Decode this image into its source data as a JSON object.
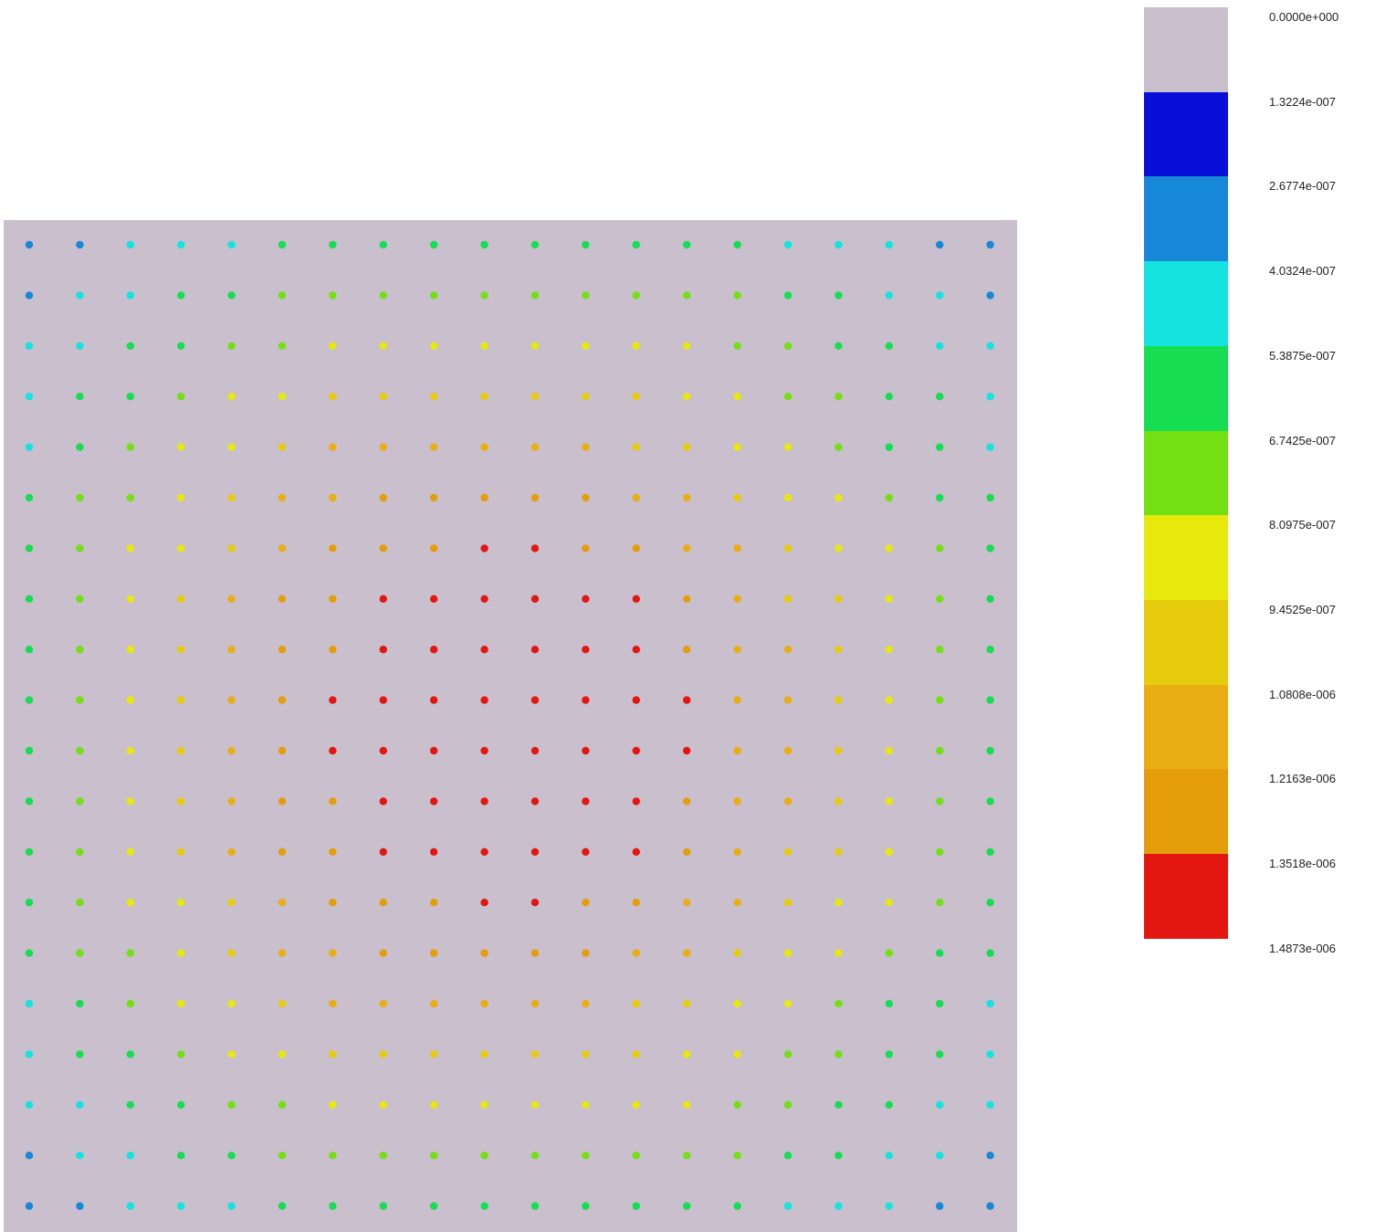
{
  "chart_data": {
    "type": "heatmap",
    "background_color": "#c9bfcd",
    "grid": {
      "rows": 20,
      "cols": 20
    },
    "legend": {
      "placement": "right",
      "labels": [
        "0.0000e+000",
        "1.3224e-007",
        "2.6774e-007",
        "4.0324e-007",
        "5.3875e-007",
        "6.7425e-007",
        "8.0975e-007",
        "9.4525e-007",
        "1.0808e-006",
        "1.2163e-006",
        "1.3518e-006",
        "1.4873e-006"
      ],
      "colors": [
        "#c9bfcd",
        "#0a0ed9",
        "#1787d8",
        "#14e3e0",
        "#17dd53",
        "#72e012",
        "#e7e80c",
        "#e6cc0c",
        "#e9ae11",
        "#e59d0a",
        "#e3170f"
      ]
    },
    "point_levels": [
      [
        2,
        2,
        3,
        3,
        3,
        4,
        4,
        4,
        4,
        4,
        4,
        4,
        4,
        4,
        4,
        3,
        3,
        3,
        2,
        2
      ],
      [
        2,
        3,
        3,
        4,
        4,
        5,
        5,
        5,
        5,
        5,
        5,
        5,
        5,
        5,
        5,
        4,
        4,
        3,
        3,
        2
      ],
      [
        3,
        3,
        4,
        4,
        5,
        5,
        6,
        6,
        6,
        6,
        6,
        6,
        6,
        6,
        5,
        5,
        4,
        4,
        3,
        3
      ],
      [
        3,
        4,
        4,
        5,
        6,
        6,
        7,
        7,
        7,
        7,
        7,
        7,
        7,
        6,
        6,
        5,
        5,
        4,
        4,
        3
      ],
      [
        3,
        4,
        5,
        6,
        6,
        7,
        8,
        8,
        8,
        8,
        8,
        8,
        7,
        7,
        6,
        6,
        5,
        4,
        4,
        3
      ],
      [
        4,
        5,
        5,
        6,
        7,
        8,
        8,
        9,
        9,
        9,
        9,
        9,
        8,
        8,
        7,
        6,
        6,
        5,
        4,
        4
      ],
      [
        4,
        5,
        6,
        6,
        7,
        8,
        9,
        9,
        9,
        10,
        10,
        9,
        9,
        8,
        8,
        7,
        6,
        6,
        5,
        4
      ],
      [
        4,
        5,
        6,
        7,
        8,
        9,
        9,
        10,
        10,
        10,
        10,
        10,
        10,
        9,
        8,
        7,
        7,
        6,
        5,
        4
      ],
      [
        4,
        5,
        6,
        7,
        8,
        9,
        9,
        10,
        10,
        10,
        10,
        10,
        10,
        9,
        8,
        8,
        7,
        6,
        5,
        4
      ],
      [
        4,
        5,
        6,
        7,
        8,
        9,
        10,
        10,
        10,
        10,
        10,
        10,
        10,
        10,
        8,
        8,
        7,
        6,
        5,
        4
      ],
      [
        4,
        5,
        6,
        7,
        8,
        9,
        10,
        10,
        10,
        10,
        10,
        10,
        10,
        10,
        8,
        8,
        7,
        6,
        5,
        4
      ],
      [
        4,
        5,
        6,
        7,
        8,
        9,
        9,
        10,
        10,
        10,
        10,
        10,
        10,
        9,
        8,
        8,
        7,
        6,
        5,
        4
      ],
      [
        4,
        5,
        6,
        7,
        8,
        9,
        9,
        10,
        10,
        10,
        10,
        10,
        10,
        9,
        8,
        7,
        7,
        6,
        5,
        4
      ],
      [
        4,
        5,
        6,
        6,
        7,
        8,
        9,
        9,
        9,
        10,
        10,
        9,
        9,
        8,
        8,
        7,
        6,
        6,
        5,
        4
      ],
      [
        4,
        5,
        5,
        6,
        7,
        8,
        8,
        9,
        9,
        9,
        9,
        9,
        8,
        8,
        7,
        6,
        6,
        5,
        4,
        4
      ],
      [
        3,
        4,
        5,
        6,
        6,
        7,
        8,
        8,
        8,
        8,
        8,
        8,
        7,
        7,
        6,
        6,
        5,
        4,
        4,
        3
      ],
      [
        3,
        4,
        4,
        5,
        6,
        6,
        7,
        7,
        7,
        7,
        7,
        7,
        7,
        6,
        6,
        5,
        5,
        4,
        4,
        3
      ],
      [
        3,
        3,
        4,
        4,
        5,
        5,
        6,
        6,
        6,
        6,
        6,
        6,
        6,
        6,
        5,
        5,
        4,
        4,
        3,
        3
      ],
      [
        2,
        3,
        3,
        4,
        4,
        5,
        5,
        5,
        5,
        5,
        5,
        5,
        5,
        5,
        5,
        4,
        4,
        3,
        3,
        2
      ],
      [
        2,
        2,
        3,
        3,
        3,
        4,
        4,
        4,
        4,
        4,
        4,
        4,
        4,
        4,
        4,
        3,
        3,
        3,
        2,
        2
      ]
    ]
  }
}
